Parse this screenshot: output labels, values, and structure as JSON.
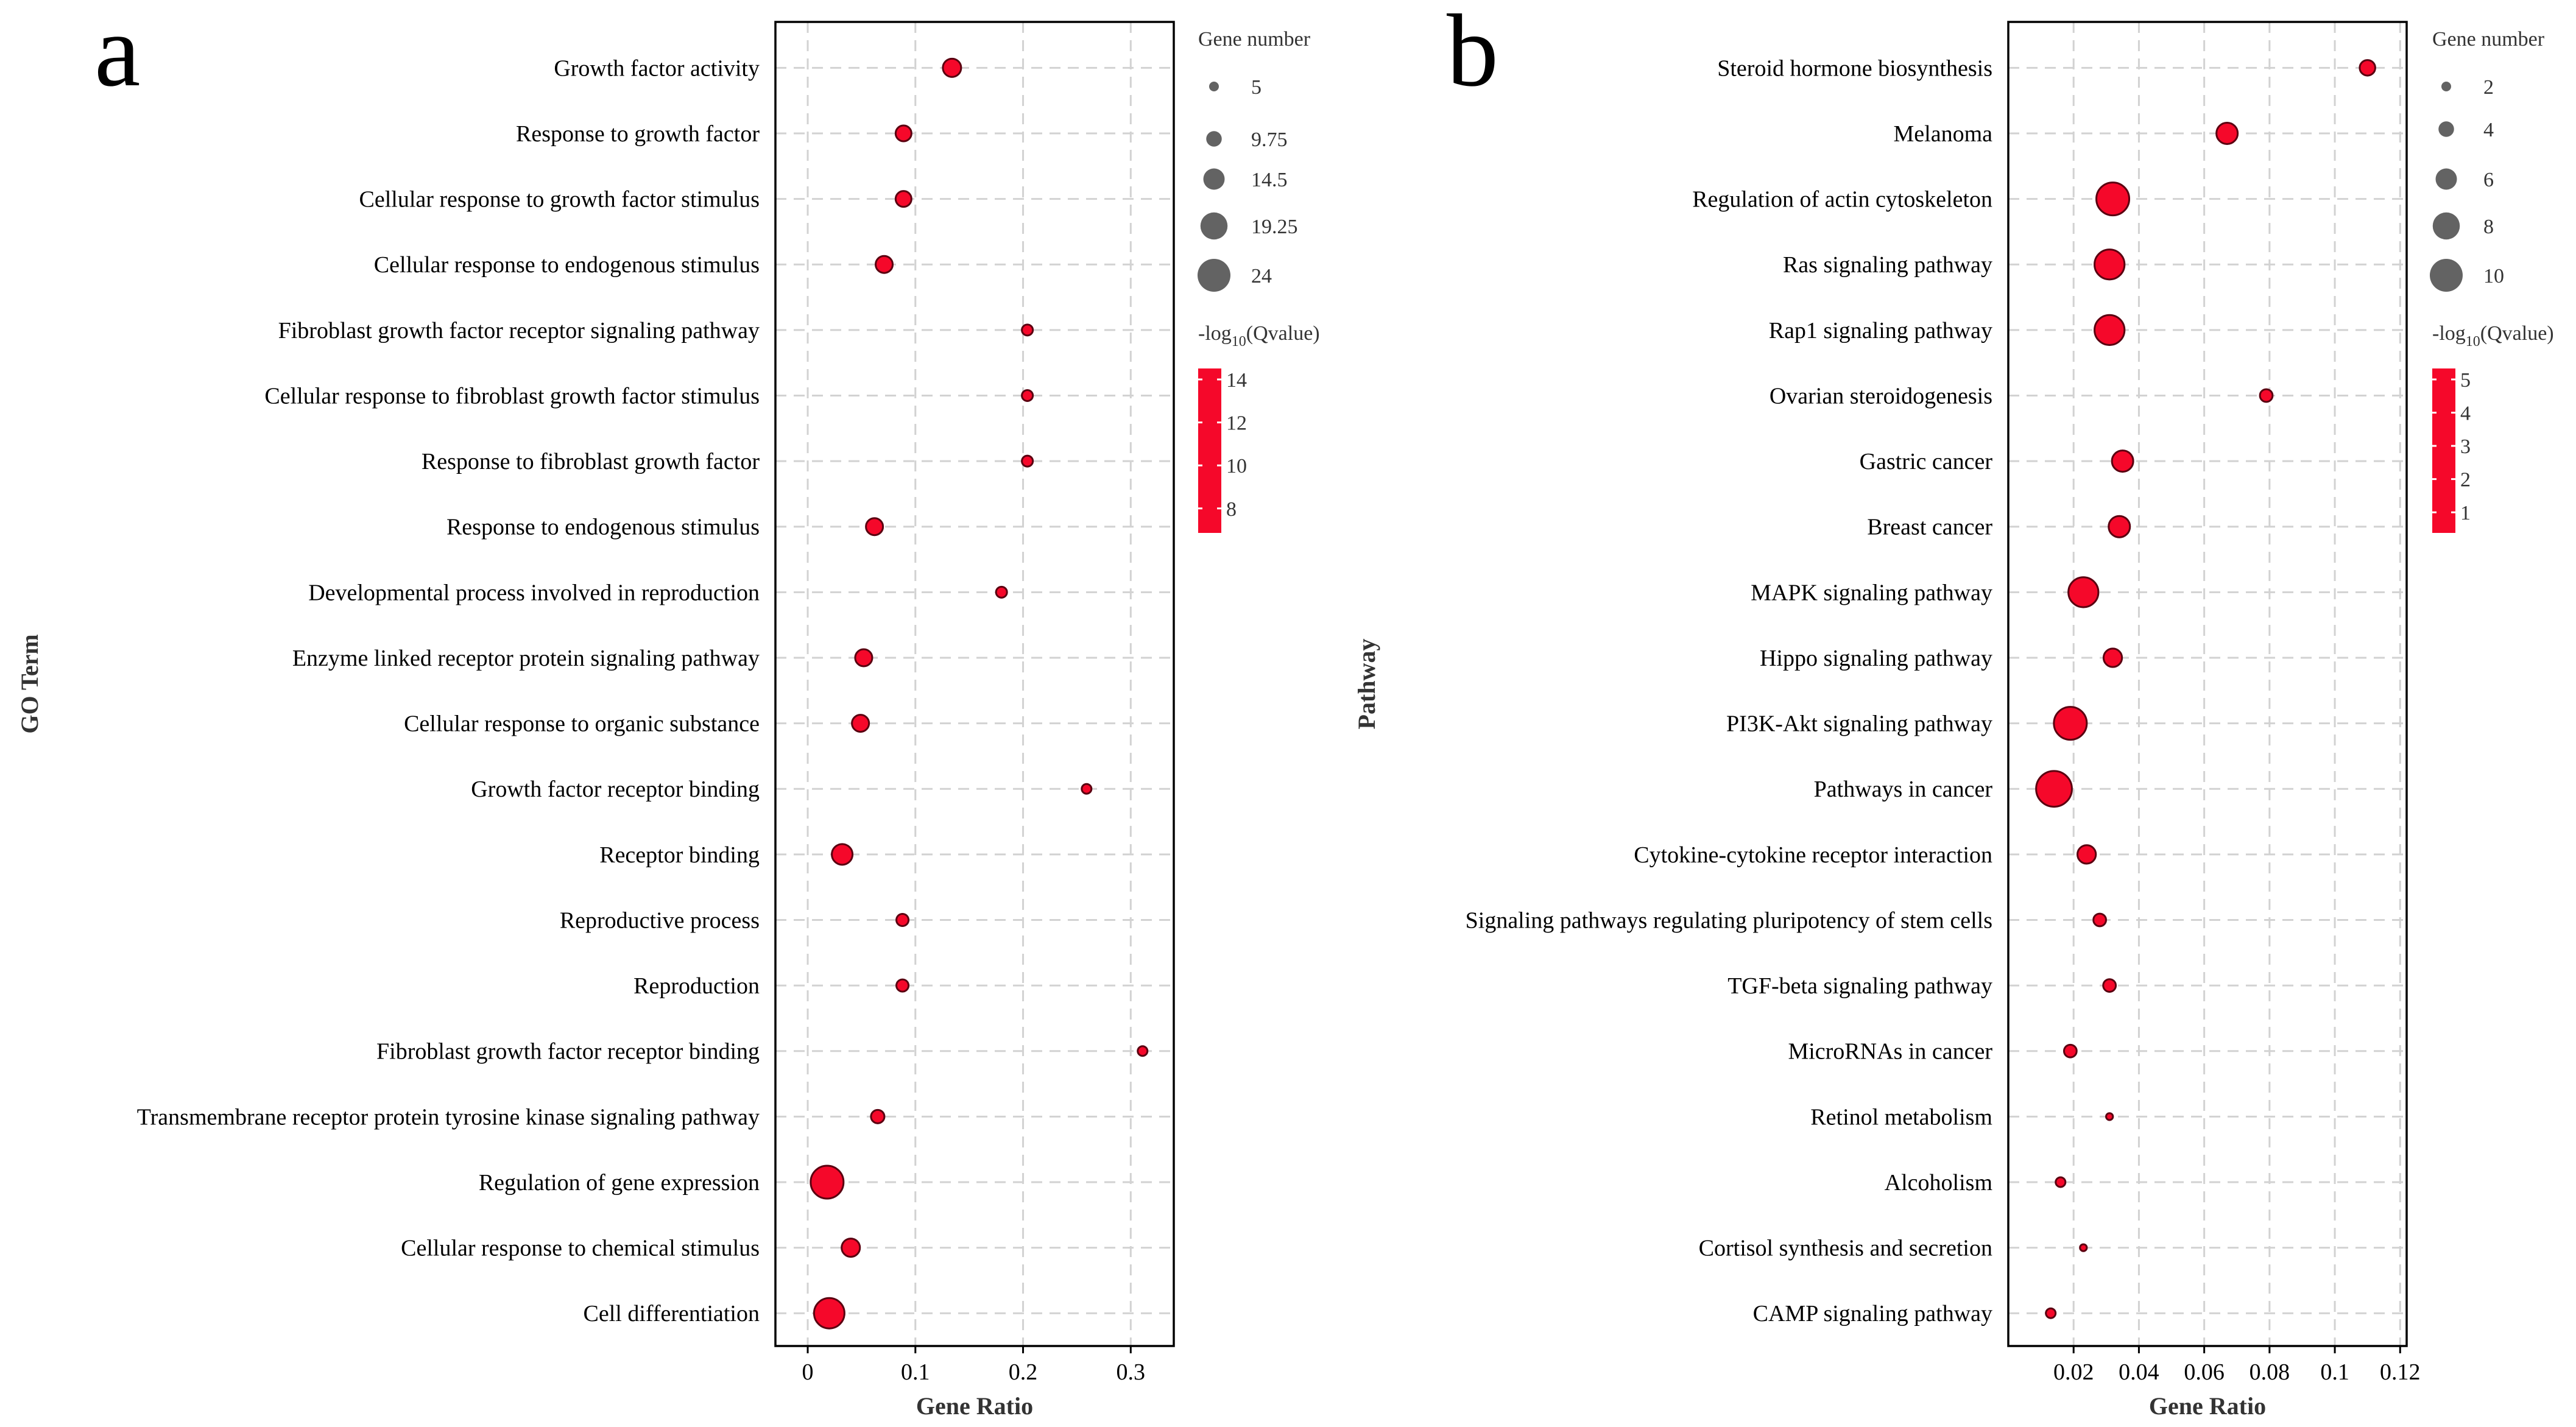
{
  "colors": {
    "point": "#f5082a",
    "point_edge": "#5a0010",
    "legend_dot": "#636363",
    "grid": "#d2d2d2"
  },
  "chart_data": [
    {
      "type": "scatter",
      "panel_label": "a",
      "title": "",
      "xlabel": "Gene Ratio",
      "ylabel": "GO Term",
      "xlim": [
        -0.03,
        0.34
      ],
      "xticks": [
        0,
        0.1,
        0.2,
        0.3
      ],
      "xtick_labels": [
        "0",
        "0.1",
        "0.2",
        "0.3"
      ],
      "size_legend_title": "Gene number",
      "size_legend": [
        5,
        9.75,
        14.5,
        19.25,
        24
      ],
      "size_legend_labels": [
        "5",
        "9.75",
        "14.5",
        "19.25",
        "24"
      ],
      "size_range": [
        5,
        24
      ],
      "color_legend_title": "-log",
      "color_legend_subscript": "10",
      "color_legend_suffix": "(Qvalue)",
      "color_legend_ticks": [
        "14",
        "12",
        "10",
        "8"
      ],
      "categories": [
        "Growth factor activity",
        "Response to growth factor",
        "Cellular response to growth factor stimulus",
        "Cellular response to endogenous stimulus",
        "Fibroblast growth factor receptor signaling pathway",
        "Cellular response to fibroblast growth factor stimulus",
        "Response to fibroblast growth factor",
        "Response to endogenous stimulus",
        "Developmental process involved in reproduction",
        "Enzyme linked receptor protein signaling pathway",
        "Cellular response to organic substance",
        "Growth factor receptor binding",
        "Receptor binding",
        "Reproductive process",
        "Reproduction",
        "Fibroblast growth factor receptor binding",
        "Transmembrane receptor protein tyrosine kinase signaling pathway",
        "Regulation of gene expression",
        "Cellular response to chemical stimulus",
        "Cell differentiation"
      ],
      "gene_ratio": [
        0.134,
        0.089,
        0.089,
        0.071,
        0.204,
        0.204,
        0.204,
        0.062,
        0.18,
        0.052,
        0.049,
        0.259,
        0.032,
        0.088,
        0.088,
        0.311,
        0.065,
        0.018,
        0.04,
        0.02
      ],
      "gene_number": [
        12,
        10,
        10,
        11,
        6,
        6,
        6,
        11,
        6,
        11,
        11,
        5,
        14,
        7,
        7,
        5,
        8,
        24,
        12,
        22
      ]
    },
    {
      "type": "scatter",
      "panel_label": "b",
      "title": "",
      "xlabel": "Gene Ratio",
      "ylabel": "Pathway",
      "xlim": [
        0,
        0.122
      ],
      "xticks": [
        0.02,
        0.04,
        0.06,
        0.08,
        0.1,
        0.12
      ],
      "xtick_labels": [
        "0.02",
        "0.04",
        "0.06",
        "0.08",
        "0.1",
        "0.12"
      ],
      "size_legend_title": "Gene number",
      "size_legend": [
        2,
        4,
        6,
        8,
        10
      ],
      "size_legend_labels": [
        "2",
        "4",
        "6",
        "8",
        "10"
      ],
      "size_range": [
        2,
        10
      ],
      "color_legend_title": "-log",
      "color_legend_subscript": "10",
      "color_legend_suffix": "(Qvalue)",
      "color_legend_ticks": [
        "5",
        "4",
        "3",
        "2",
        "1"
      ],
      "categories": [
        "Steroid hormone biosynthesis",
        "Melanoma",
        "Regulation of actin cytoskeleton",
        "Ras signaling pathway",
        "Rap1 signaling pathway",
        "Ovarian steroidogenesis",
        "Gastric cancer",
        "Breast cancer",
        "MAPK signaling pathway",
        "Hippo signaling pathway",
        "PI3K-Akt signaling pathway",
        "Pathways in cancer",
        "Cytokine-cytokine receptor interaction",
        "Signaling pathways regulating pluripotency of stem cells",
        "TGF-beta signaling pathway",
        "MicroRNAs in cancer",
        "Retinol metabolism",
        "Alcoholism",
        "Cortisol synthesis and secretion",
        "CAMP signaling pathway"
      ],
      "gene_ratio": [
        0.11,
        0.067,
        0.032,
        0.031,
        0.031,
        0.079,
        0.035,
        0.034,
        0.023,
        0.032,
        0.019,
        0.014,
        0.024,
        0.028,
        0.031,
        0.019,
        0.031,
        0.016,
        0.023,
        0.013
      ],
      "gene_number": [
        4,
        6,
        10,
        9,
        9,
        3,
        6,
        6,
        9,
        5,
        10,
        11,
        5,
        3,
        3,
        3,
        1,
        2,
        1,
        2
      ]
    }
  ]
}
